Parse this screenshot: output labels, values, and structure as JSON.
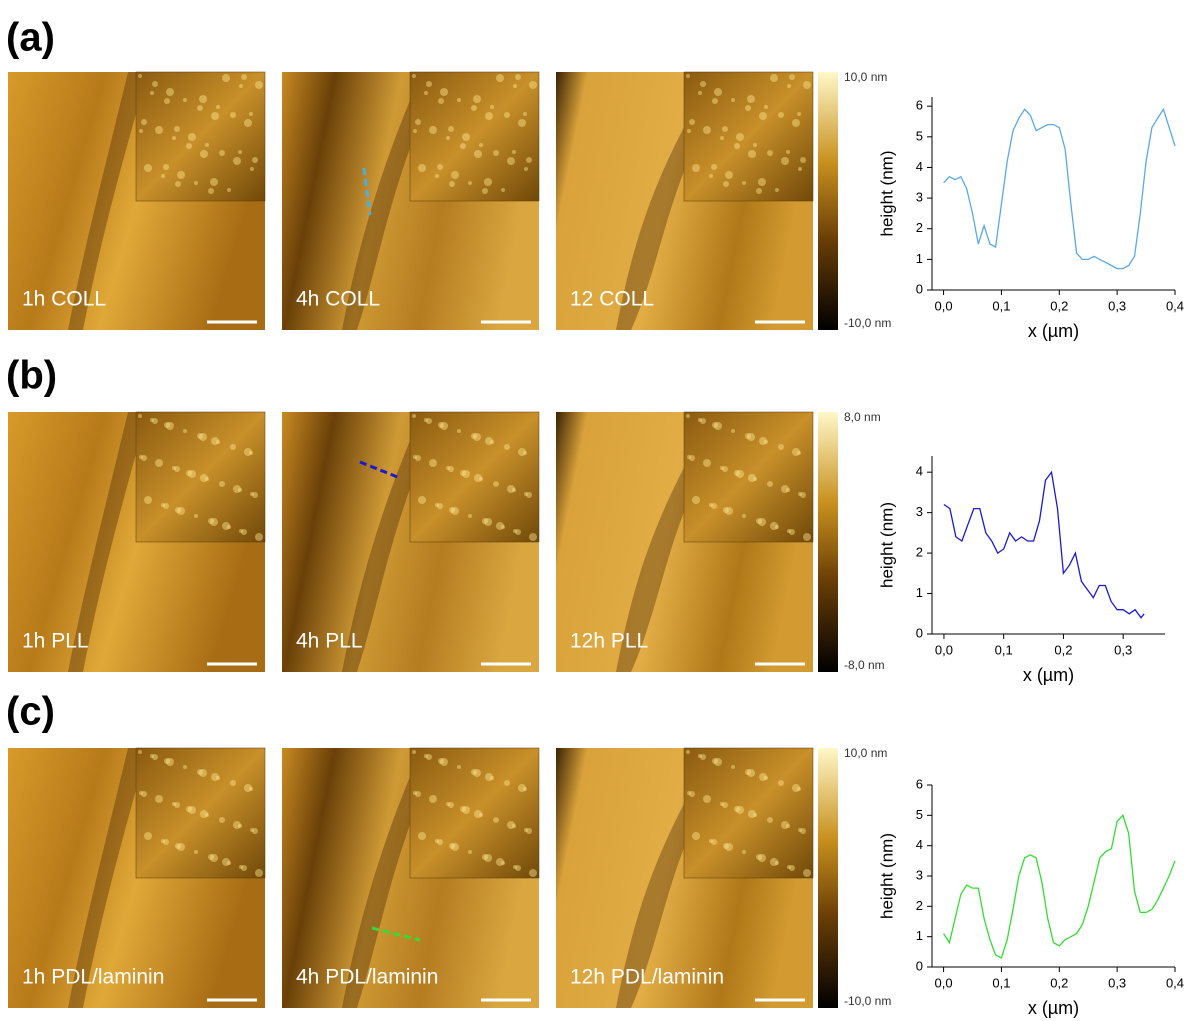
{
  "panels": [
    {
      "label": "(a)",
      "images": [
        "1h COLL",
        "4h COLL",
        "12  COLL"
      ],
      "colorbar": {
        "max": "10,0 nm",
        "min": "-10,0 nm"
      }
    },
    {
      "label": "(b)",
      "images": [
        "1h PLL",
        "4h PLL",
        "12h  PLL"
      ],
      "colorbar": {
        "max": "8,0 nm",
        "min": "-8,0 nm"
      }
    },
    {
      "label": "(c)",
      "images": [
        "1h PDL/laminin",
        "4h PDL/laminin",
        "12h  PDL/laminin"
      ],
      "colorbar": {
        "max": "10,0 nm",
        "min": "-10,0 nm"
      }
    }
  ],
  "chart_data": [
    {
      "type": "line",
      "x_label": "x (µm)",
      "y_label": "height (nm)",
      "color": "#5aa9e6",
      "x": [
        0,
        0.01,
        0.02,
        0.03,
        0.04,
        0.05,
        0.06,
        0.07,
        0.08,
        0.09,
        0.1,
        0.11,
        0.12,
        0.13,
        0.14,
        0.15,
        0.16,
        0.17,
        0.18,
        0.19,
        0.2,
        0.21,
        0.22,
        0.23,
        0.24,
        0.25,
        0.26,
        0.27,
        0.28,
        0.29,
        0.3,
        0.31,
        0.32,
        0.33,
        0.34,
        0.35,
        0.36,
        0.37,
        0.38,
        0.39,
        0.4
      ],
      "values": [
        3.5,
        3.7,
        3.6,
        3.7,
        3.3,
        2.5,
        1.5,
        2.1,
        1.5,
        1.4,
        2.8,
        4.2,
        5.2,
        5.6,
        5.9,
        5.7,
        5.2,
        5.3,
        5.4,
        5.4,
        5.3,
        4.6,
        2.8,
        1.2,
        1.0,
        1.0,
        1.1,
        1.0,
        0.9,
        0.8,
        0.7,
        0.7,
        0.8,
        1.1,
        2.5,
        4.2,
        5.3,
        5.6,
        5.9,
        5.3,
        4.7
      ],
      "xlim": [
        -0.02,
        0.4
      ],
      "ylim": [
        0,
        6.3
      ],
      "xticks": [
        {
          "value": 0,
          "label": "0,0"
        },
        {
          "value": 0.1,
          "label": "0,1"
        },
        {
          "value": 0.2,
          "label": "0,2"
        },
        {
          "value": 0.3,
          "label": "0,3"
        },
        {
          "value": 0.4,
          "label": "0,4"
        }
      ],
      "yticks": [
        0,
        1,
        2,
        3,
        4,
        5,
        6
      ]
    },
    {
      "type": "line",
      "x_label": "x (µm)",
      "y_label": "height (nm)",
      "color": "#1a1ad0",
      "x": [
        0,
        0.01,
        0.02,
        0.03,
        0.04,
        0.05,
        0.06,
        0.07,
        0.08,
        0.09,
        0.1,
        0.11,
        0.12,
        0.13,
        0.14,
        0.15,
        0.16,
        0.17,
        0.18,
        0.19,
        0.2,
        0.21,
        0.22,
        0.23,
        0.24,
        0.25,
        0.26,
        0.27,
        0.28,
        0.29,
        0.3,
        0.31,
        0.32,
        0.33,
        0.335
      ],
      "values": [
        3.2,
        3.1,
        2.4,
        2.3,
        2.7,
        3.1,
        3.1,
        2.5,
        2.3,
        2.0,
        2.1,
        2.5,
        2.3,
        2.4,
        2.3,
        2.3,
        2.8,
        3.8,
        4.0,
        3.1,
        1.5,
        1.7,
        2.0,
        1.3,
        1.1,
        0.9,
        1.2,
        1.2,
        0.8,
        0.6,
        0.6,
        0.5,
        0.6,
        0.4,
        0.5
      ],
      "xlim": [
        -0.02,
        0.37
      ],
      "ylim": [
        0,
        4.4
      ],
      "xticks": [
        {
          "value": 0,
          "label": "0,0"
        },
        {
          "value": 0.1,
          "label": "0,1"
        },
        {
          "value": 0.2,
          "label": "0,2"
        },
        {
          "value": 0.3,
          "label": "0,3"
        }
      ],
      "yticks": [
        0,
        1,
        2,
        3,
        4
      ]
    },
    {
      "type": "line",
      "x_label": "x (µm)",
      "y_label": "height (nm)",
      "color": "#33dd33",
      "x": [
        0,
        0.01,
        0.02,
        0.03,
        0.04,
        0.05,
        0.06,
        0.07,
        0.08,
        0.09,
        0.1,
        0.11,
        0.12,
        0.13,
        0.14,
        0.15,
        0.16,
        0.17,
        0.18,
        0.19,
        0.2,
        0.21,
        0.22,
        0.23,
        0.24,
        0.25,
        0.26,
        0.27,
        0.28,
        0.29,
        0.3,
        0.31,
        0.32,
        0.33,
        0.34,
        0.35,
        0.36,
        0.37,
        0.38,
        0.39,
        0.4
      ],
      "values": [
        1.1,
        0.8,
        1.6,
        2.4,
        2.7,
        2.6,
        2.6,
        1.6,
        0.9,
        0.4,
        0.3,
        0.9,
        1.9,
        3.0,
        3.6,
        3.7,
        3.6,
        2.8,
        1.6,
        0.8,
        0.7,
        0.9,
        1.0,
        1.1,
        1.4,
        2.0,
        2.8,
        3.6,
        3.8,
        3.9,
        4.8,
        5.0,
        4.4,
        2.5,
        1.8,
        1.8,
        1.9,
        2.2,
        2.6,
        3.0,
        3.5
      ],
      "xlim": [
        -0.02,
        0.4
      ],
      "ylim": [
        0,
        6
      ],
      "xticks": [
        {
          "value": 0,
          "label": "0,0"
        },
        {
          "value": 0.1,
          "label": "0,1"
        },
        {
          "value": 0.2,
          "label": "0,2"
        },
        {
          "value": 0.3,
          "label": "0,3"
        },
        {
          "value": 0.4,
          "label": "0,4"
        }
      ],
      "yticks": [
        0,
        1,
        2,
        3,
        4,
        5,
        6
      ]
    }
  ]
}
